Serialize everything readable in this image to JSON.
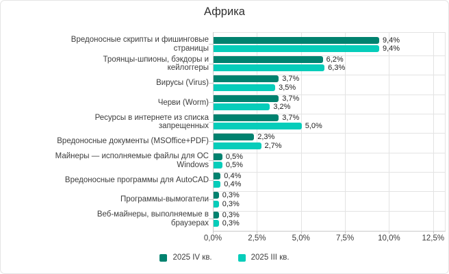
{
  "title": "Африка",
  "colors": {
    "q4_2025": "#00826F",
    "q3_2025": "#06CDBA",
    "grid": "#e3e3e3",
    "axis": "#c9c9c9",
    "label_text": "#3c3c3c",
    "value_text": "#1c1c1c",
    "title_text": "#2e2e2e",
    "frame_border": "#e4e4e4",
    "background": "#ffffff"
  },
  "chart_data": {
    "type": "bar",
    "orientation": "horizontal",
    "title": "Африка",
    "categories": [
      "Вредоносные скрипты и фишинговые\nстраницы",
      "Троянцы-шпионы, бэкдоры и\nкейлоггеры",
      "Вирусы (Virus)",
      "Черви (Worm)",
      "Ресурсы в интернете из списка\nзапрещенных",
      "Вредоносные документы (MSOffice+PDF)",
      "Майнеры — исполняемые файлы для ОС\nWindows",
      "Вредоносные программы для AutoCAD",
      "Программы-вымогатели",
      "Веб-майнеры, выполняемые в\nбраузерах"
    ],
    "series": [
      {
        "name": "2025 IV кв.",
        "color": "#00826F",
        "values": [
          9.4,
          6.2,
          3.7,
          3.7,
          3.7,
          2.3,
          0.5,
          0.4,
          0.3,
          0.3
        ],
        "labels": [
          "9,4%",
          "6,2%",
          "3,7%",
          "3,7%",
          "3,7%",
          "2,3%",
          "0,5%",
          "0,4%",
          "0,3%",
          "0,3%"
        ]
      },
      {
        "name": "2025 III кв.",
        "color": "#06CDBA",
        "values": [
          9.4,
          6.3,
          3.5,
          3.2,
          5.0,
          2.7,
          0.5,
          0.4,
          0.3,
          0.3
        ],
        "labels": [
          "9,4%",
          "6,3%",
          "3,5%",
          "3,2%",
          "5,0%",
          "2,7%",
          "0,5%",
          "0,4%",
          "0,3%",
          "0,3%"
        ]
      }
    ],
    "x_axis": {
      "tick_labels": [
        "0,0%",
        "2,5%",
        "5,0%",
        "7,5%",
        "10,0%",
        "12,5%"
      ],
      "tick_values": [
        0,
        2.5,
        5,
        7.5,
        10,
        12.5
      ],
      "min": 0,
      "max": 12.5,
      "unit": "%"
    },
    "grid": true,
    "legend_position": "bottom",
    "bar_style": "rounded-right"
  }
}
